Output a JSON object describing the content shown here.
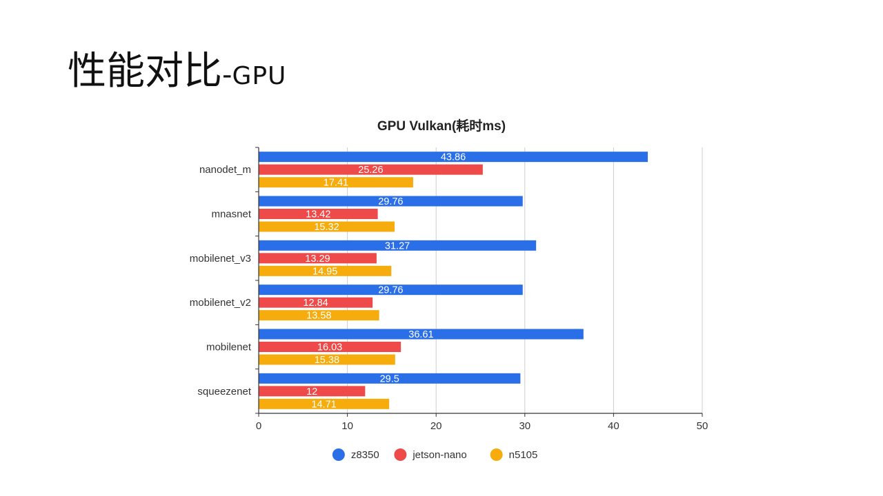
{
  "slide": {
    "title_cn": "性能对比",
    "title_sep": "-",
    "title_en": "GPU"
  },
  "chart_data": {
    "type": "bar",
    "orientation": "horizontal",
    "title": "GPU Vulkan(耗时ms)",
    "categories": [
      "nanodet_m",
      "mnasnet",
      "mobilenet_v3",
      "mobilenet_v2",
      "mobilenet",
      "squeezenet"
    ],
    "series": [
      {
        "name": "z8350",
        "color": "#2a6fe8",
        "values": [
          43.86,
          29.76,
          31.27,
          29.76,
          36.61,
          29.5
        ]
      },
      {
        "name": "jetson-nano",
        "color": "#ee4a4a",
        "values": [
          25.26,
          13.42,
          13.29,
          12.84,
          16.03,
          12
        ]
      },
      {
        "name": "n5105",
        "color": "#f5ac0c",
        "values": [
          17.41,
          15.32,
          14.95,
          13.58,
          15.38,
          14.71
        ]
      }
    ],
    "xlim": [
      0,
      50
    ],
    "xticks": [
      0,
      10,
      20,
      30,
      40,
      50
    ],
    "xlabel": "",
    "ylabel": "",
    "grid": "vertical",
    "legend_position": "bottom",
    "data_labels": true
  }
}
